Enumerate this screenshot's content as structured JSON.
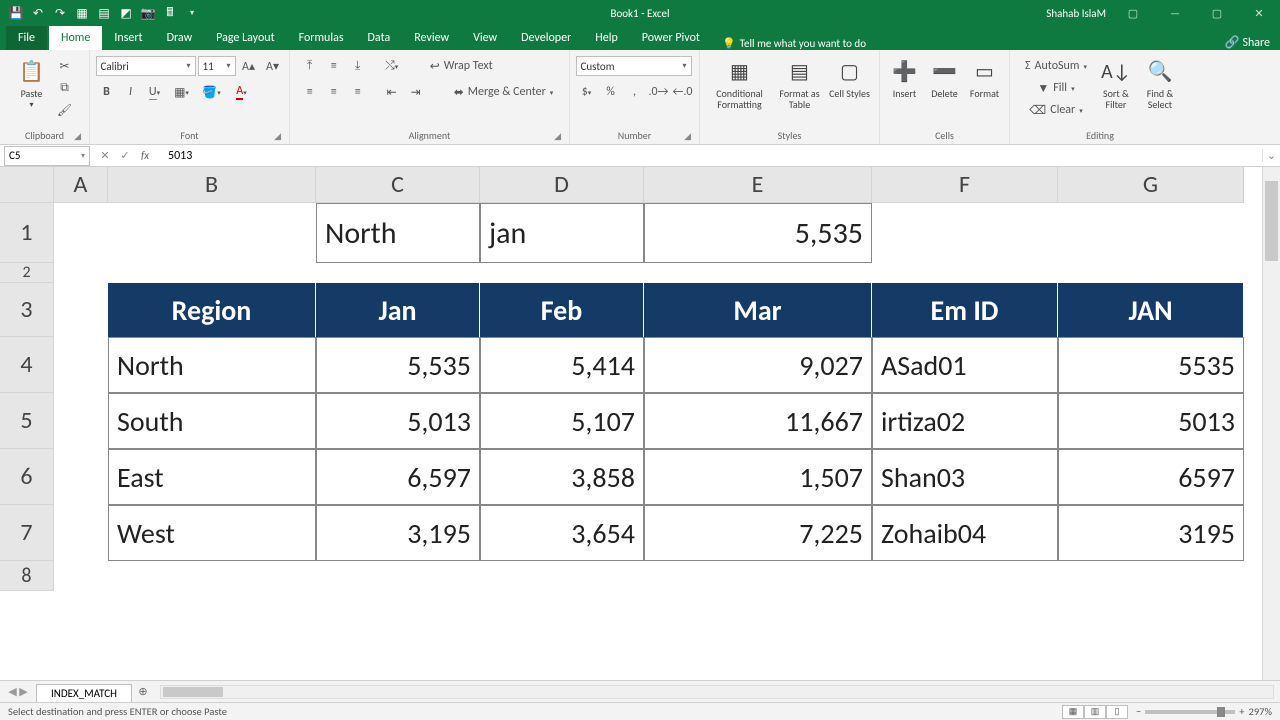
{
  "title": "Book1 - Excel",
  "user": "Shahab IslaM",
  "share": "Share",
  "tabs": [
    "File",
    "Home",
    "Insert",
    "Draw",
    "Page Layout",
    "Formulas",
    "Data",
    "Review",
    "View",
    "Developer",
    "Help",
    "Power Pivot"
  ],
  "active_tab": "Home",
  "tell_me": "Tell me what you want to do",
  "name_box": "C5",
  "formula": "5013",
  "ribbon": {
    "clipboard": {
      "label": "Clipboard",
      "paste": "Paste"
    },
    "font": {
      "label": "Font",
      "name": "Calibri",
      "size": "11"
    },
    "alignment": {
      "label": "Alignment",
      "wrap": "Wrap Text",
      "merge": "Merge & Center"
    },
    "number": {
      "label": "Number",
      "format": "Custom"
    },
    "styles": {
      "label": "Styles",
      "cond": "Conditional Formatting",
      "table": "Format as Table",
      "cell": "Cell Styles"
    },
    "cells": {
      "label": "Cells",
      "insert": "Insert",
      "delete": "Delete",
      "format": "Format"
    },
    "editing": {
      "label": "Editing",
      "autosum": "AutoSum",
      "fill": "Fill",
      "clear": "Clear",
      "sort": "Sort & Filter",
      "find": "Find & Select"
    }
  },
  "sheet_tab": "INDEX_MATCH",
  "status_msg": "Select destination and press ENTER or choose Paste",
  "zoom": "297%",
  "grid": {
    "col_widths": {
      "A": 54,
      "B": 208,
      "C": 164,
      "D": 164,
      "E": 228,
      "F": 186,
      "G": 186
    },
    "row_heights": {
      "hdr": 36,
      "1": 60,
      "2": 20,
      "3": 54,
      "4": 56,
      "5": 56,
      "6": 56,
      "7": 56,
      "8": 30
    },
    "col_letters": [
      "A",
      "B",
      "C",
      "D",
      "E",
      "F",
      "G"
    ],
    "row_numbers": [
      "1",
      "2",
      "3",
      "4",
      "5",
      "6",
      "7",
      "8"
    ],
    "header_bg": "#143a66",
    "header_fg": "#ffffff",
    "row1": {
      "C": "North",
      "D": "jan",
      "E": "5,535"
    },
    "headers": [
      "Region",
      "Jan",
      "Feb",
      "Mar",
      "Em ID",
      "JAN"
    ],
    "rows": [
      {
        "region": "North",
        "jan": "5,535",
        "feb": "5,414",
        "mar": "9,027",
        "emid": "ASad01",
        "jan2": "5535"
      },
      {
        "region": "South",
        "jan": "5,013",
        "feb": "5,107",
        "mar": "11,667",
        "emid": "irtiza02",
        "jan2": "5013"
      },
      {
        "region": "East",
        "jan": "6,597",
        "feb": "3,858",
        "mar": "1,507",
        "emid": "Shan03",
        "jan2": "6597"
      },
      {
        "region": "West",
        "jan": "3,195",
        "feb": "3,654",
        "mar": "7,225",
        "emid": "Zohaib04",
        "jan2": "3195"
      }
    ]
  }
}
